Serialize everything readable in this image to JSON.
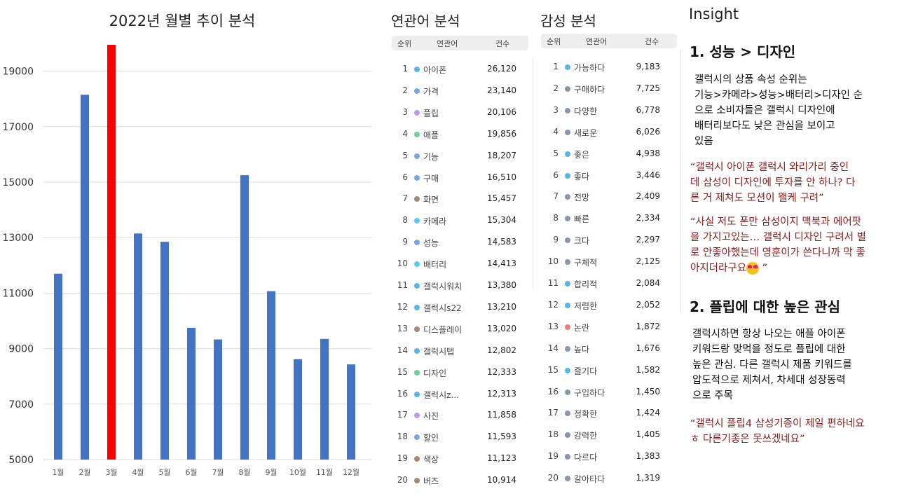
{
  "chart_data": {
    "type": "bar",
    "title": "2022년 월별 추이 분석",
    "categories": [
      "1월",
      "2월",
      "3월",
      "4월",
      "5월",
      "6월",
      "7월",
      "8월",
      "9월",
      "10월",
      "11월",
      "12월"
    ],
    "values": [
      11700,
      18150,
      19950,
      13150,
      12850,
      9750,
      9330,
      15250,
      11070,
      8620,
      9350,
      8430
    ],
    "highlight_index": 2,
    "colors": {
      "bar": "#4472c4",
      "highlight": "#ff0000",
      "grid": "#dcdcdc"
    },
    "yticks": [
      5000,
      7000,
      9000,
      11000,
      13000,
      15000,
      17000,
      19000
    ],
    "ylim": [
      5000,
      20000
    ],
    "xlabel": "",
    "ylabel": ""
  },
  "related": {
    "title": "연관어 분석",
    "headers": {
      "rank": "순위",
      "word": "연관어",
      "count": "건수"
    },
    "rows": [
      {
        "rank": "1",
        "word": "아이폰",
        "count": "26,120",
        "color": "#5ab4e8"
      },
      {
        "rank": "2",
        "word": "가격",
        "count": "23,140",
        "color": "#7aa7e0"
      },
      {
        "rank": "3",
        "word": "플립",
        "count": "20,106",
        "color": "#b99ae8"
      },
      {
        "rank": "4",
        "word": "애플",
        "count": "19,856",
        "color": "#6fcf97"
      },
      {
        "rank": "5",
        "word": "기능",
        "count": "18,207",
        "color": "#7aa7e0"
      },
      {
        "rank": "6",
        "word": "구매",
        "count": "16,510",
        "color": "#7aa7e0"
      },
      {
        "rank": "7",
        "word": "화면",
        "count": "15,457",
        "color": "#a58a78"
      },
      {
        "rank": "8",
        "word": "카메라",
        "count": "15,304",
        "color": "#5ac8e8"
      },
      {
        "rank": "9",
        "word": "성능",
        "count": "14,583",
        "color": "#7aa7e0"
      },
      {
        "rank": "10",
        "word": "배터리",
        "count": "14,413",
        "color": "#5ac8e8"
      },
      {
        "rank": "11",
        "word": "갤럭시워치",
        "count": "13,380",
        "color": "#5ab4e8"
      },
      {
        "rank": "12",
        "word": "갤럭시s22",
        "count": "13,210",
        "color": "#5ab4e8"
      },
      {
        "rank": "13",
        "word": "디스플레이",
        "count": "13,020",
        "color": "#a58a78"
      },
      {
        "rank": "14",
        "word": "갤럭시탭",
        "count": "12,802",
        "color": "#5ab4e8"
      },
      {
        "rank": "15",
        "word": "디자인",
        "count": "12,333",
        "color": "#6fcf97"
      },
      {
        "rank": "16",
        "word": "갤럭시z...",
        "count": "12,313",
        "color": "#5ab4e8"
      },
      {
        "rank": "17",
        "word": "사진",
        "count": "11,858",
        "color": "#b99ae8"
      },
      {
        "rank": "18",
        "word": "할인",
        "count": "11,593",
        "color": "#7aa7e0"
      },
      {
        "rank": "19",
        "word": "색상",
        "count": "11,123",
        "color": "#a58a78"
      },
      {
        "rank": "20",
        "word": "버즈",
        "count": "10,914",
        "color": "#a58a78"
      }
    ]
  },
  "sentiment": {
    "title": "감성 분석",
    "headers": {
      "rank": "순위",
      "word": "연관어",
      "count": "건수"
    },
    "rows": [
      {
        "rank": "1",
        "word": "가능하다",
        "count": "9,183",
        "color": "#5ab4e8"
      },
      {
        "rank": "2",
        "word": "구매하다",
        "count": "7,725",
        "color": "#8a96a8"
      },
      {
        "rank": "3",
        "word": "다양한",
        "count": "6,778",
        "color": "#8a96a8"
      },
      {
        "rank": "4",
        "word": "새로운",
        "count": "6,026",
        "color": "#8a96a8"
      },
      {
        "rank": "5",
        "word": "좋은",
        "count": "4,938",
        "color": "#5ab4e8"
      },
      {
        "rank": "6",
        "word": "좋다",
        "count": "3,446",
        "color": "#5ab4e8"
      },
      {
        "rank": "7",
        "word": "전망",
        "count": "2,409",
        "color": "#8a96a8"
      },
      {
        "rank": "8",
        "word": "빠른",
        "count": "2,334",
        "color": "#8a96a8"
      },
      {
        "rank": "9",
        "word": "크다",
        "count": "2,297",
        "color": "#8a96a8"
      },
      {
        "rank": "10",
        "word": "구체적",
        "count": "2,125",
        "color": "#8a96a8"
      },
      {
        "rank": "11",
        "word": "합리적",
        "count": "2,084",
        "color": "#5ab4e8"
      },
      {
        "rank": "12",
        "word": "저렴한",
        "count": "2,052",
        "color": "#5ab4e8"
      },
      {
        "rank": "13",
        "word": "논란",
        "count": "1,872",
        "color": "#f07a7a"
      },
      {
        "rank": "14",
        "word": "높다",
        "count": "1,676",
        "color": "#8a96a8"
      },
      {
        "rank": "15",
        "word": "즐기다",
        "count": "1,582",
        "color": "#5ab4e8"
      },
      {
        "rank": "16",
        "word": "구입하다",
        "count": "1,450",
        "color": "#8a96a8"
      },
      {
        "rank": "17",
        "word": "정확한",
        "count": "1,424",
        "color": "#8a96a8"
      },
      {
        "rank": "18",
        "word": "강력한",
        "count": "1,405",
        "color": "#8a96a8"
      },
      {
        "rank": "19",
        "word": "다르다",
        "count": "1,383",
        "color": "#8a96a8"
      },
      {
        "rank": "20",
        "word": "갈아타다",
        "count": "1,319",
        "color": "#8a96a8"
      }
    ]
  },
  "insight": {
    "title": "Insight",
    "h1": "1. 성능 > 디자인",
    "p1": [
      "갤럭시의 상품 속성 순위는",
      "기능>카메라>성능>배터리>디자인 순",
      "으로 소비자들은 갤럭시 디자인에",
      "배터리보다도 낮은 관심을 보이고",
      "있음"
    ],
    "q1": [
      "“갤럭시 아이폰 갤럭시 와리가리 중인",
      "데 삼성이 디자인에 투자를 안 하나? 다",
      "른 거 제쳐도 모션이 왤케 구려”"
    ],
    "q2": [
      "“사실 저도 폰만 삼성이지 맥북과 에어팟",
      "을 가지고있는… 갤럭시 디자인 구려서 별",
      "로 안좋아했는데 영훈이가 쓴다니까 막 좋"
    ],
    "q2_last": "아지더라구요",
    "q2_end": "”",
    "emoji_name": "star-struck-emoji",
    "h2": "2. 플립에 대한 높은 관심",
    "p2": [
      "갤럭시하면 항상 나오는 애플 아이폰",
      "키워드랑 맞먹을 정도로 플립에 대한",
      "높은 관심. 다른 갤럭시 제품 키워드를",
      "압도적으로 제쳐서, 차세대 성장동력",
      "으로 주목"
    ],
    "q3": [
      "“갤럭시 플립4 삼성기종이 제일 편하네요",
      "ㅎ 다른기종은 못쓰겠네요”"
    ]
  }
}
